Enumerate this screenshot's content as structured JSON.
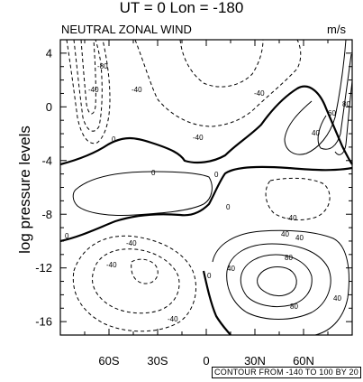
{
  "chart_data": {
    "type": "contour",
    "title": "UT = 0 Lon = -180",
    "left_label": "NEUTRAL ZONAL WIND",
    "right_label": "m/s",
    "ylabel": "log pressure levels",
    "xlabel": "",
    "x_ticks": [
      "60S",
      "30S",
      "0",
      "30N",
      "60N"
    ],
    "x_tick_values": [
      -60,
      -30,
      0,
      30,
      60
    ],
    "y_ticks": [
      "4",
      "0",
      "-4",
      "-8",
      "-12",
      "-16"
    ],
    "y_tick_values": [
      4,
      0,
      -4,
      -8,
      -12,
      -16
    ],
    "xlim": [
      -90,
      90
    ],
    "ylim": [
      -17,
      5
    ],
    "contour_info": "CONTOUR FROM -140 TO 100 BY 20",
    "contour_min": -140,
    "contour_max": 100,
    "contour_interval": 20,
    "features": [
      {
        "level": 80,
        "lon": 50,
        "lev": -12.8,
        "kind": "max"
      },
      {
        "level": -40,
        "lon": -50,
        "lev": -11.8,
        "kind": "min"
      },
      {
        "level": -40,
        "lon": -10,
        "lev": 2.0,
        "kind": "min"
      },
      {
        "level": 80,
        "lon": 87,
        "lev": 1.0,
        "kind": "max"
      }
    ],
    "contour_labels": [
      "-80",
      "-40",
      "-40",
      "-40",
      "0",
      "0",
      "0",
      "0",
      "0",
      "-40",
      "40",
      "40",
      "60",
      "80",
      "-40",
      "-40",
      "-40",
      "0",
      "40",
      "40",
      "80",
      "80",
      "40",
      "-40"
    ]
  }
}
